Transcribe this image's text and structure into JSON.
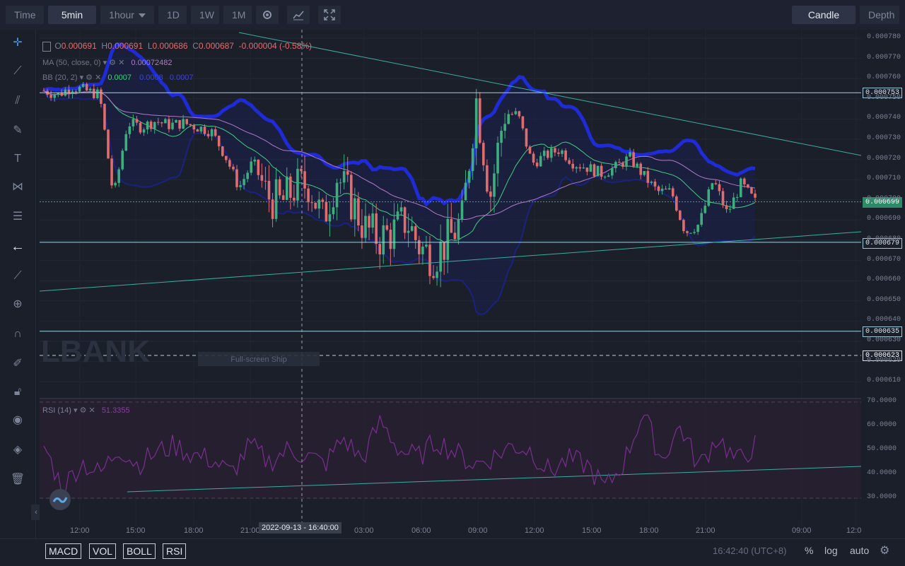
{
  "toolbar": {
    "time": "Time",
    "interval_active": "5min",
    "interval_2": "1hour",
    "d1": "1D",
    "w1": "1W",
    "m1": "1M",
    "candle_line": "Candle line",
    "depth": "Depth"
  },
  "legend": {
    "o_label": "O",
    "o_val": "0.000691",
    "h_label": "H",
    "h_val": "0.000691",
    "l_label": "L",
    "l_val": "0.000686",
    "c_label": "C",
    "c_val": "0.000687",
    "change": "-0.000004 (-0.58%)",
    "ma": "MA (50, close, 0)",
    "ma_val": "0.00072482",
    "bb": "BB (20, 2)",
    "bb_val1": "0.0007",
    "bb_val2": "0.0008",
    "bb_val3": "0.0007",
    "rsi": "RSI (14)",
    "rsi_val": "51.3355"
  },
  "watermark": "LBANK",
  "fullscreen_tip": "Full-screen Ship",
  "y_ticks": [
    "0.000780",
    "0.000770",
    "0.000760",
    "0.000750",
    "0.000740",
    "0.000730",
    "0.000720",
    "0.000710",
    "0.000700",
    "0.000690",
    "0.000680",
    "0.000670",
    "0.000660",
    "0.000650",
    "0.000640",
    "0.000630",
    "0.000620",
    "0.000610"
  ],
  "rsi_ticks": [
    "70.0000",
    "60.0000",
    "50.0000",
    "40.0000",
    "30.0000"
  ],
  "price_tags": {
    "r1": "0.000753",
    "current": "0.000699",
    "s1": "0.000679",
    "s2": "0.000635",
    "s3": "0.000623"
  },
  "x_labels": [
    "12:00",
    "15:00",
    "18:00",
    "21:00",
    "03:00",
    "06:00",
    "09:00",
    "12:00",
    "15:00",
    "18:00",
    "21:00",
    "09:00",
    "12:0"
  ],
  "crosshair_time": "2022-09-13 - 16:40:00",
  "bottom": {
    "macd": "MACD",
    "vol": "VOL",
    "boll": "BOLL",
    "rsi": "RSI",
    "clock": "16:42:40 (UTC+8)",
    "pct": "%",
    "log": "log",
    "auto": "auto"
  },
  "colors": {
    "up": "#3fae7f",
    "down": "#e06c6c",
    "boll_band": "#1f2bd6",
    "trend": "#3aaea0",
    "level": "#9ed4e6",
    "rsi_line": "#7a2f8f"
  },
  "chart_data": {
    "type": "candlestick",
    "price_series_approx": [
      0.000754,
      0.000752,
      0.000756,
      0.000754,
      0.000752,
      0.000701,
      0.000738,
      0.000736,
      0.000739,
      0.000737,
      0.000738,
      0.000736,
      0.000734,
      0.000722,
      0.000706,
      0.000719,
      0.000702,
      0.000698,
      0.000706,
      0.000708,
      0.00069,
      0.000712,
      0.0007,
      0.000686,
      0.000681,
      0.000684,
      0.00069,
      0.000676,
      0.000672,
      0.00068,
      0.00069,
      0.00075,
      0.000702,
      0.000743,
      0.000742,
      0.000718,
      0.000722,
      0.000725,
      0.000718,
      0.000716,
      0.000713,
      0.000716,
      0.000721,
      0.000712,
      0.000704,
      0.000704,
      0.000684,
      0.000688,
      0.00071,
      0.000693,
      0.000708,
      0.000699
    ],
    "support_resistance": [
      0.000753,
      0.000679,
      0.000635,
      0.000623
    ],
    "rsi_series_approx": [
      52,
      34,
      45,
      40,
      51,
      44,
      49,
      52,
      48,
      46,
      40,
      52,
      45,
      50,
      48,
      44,
      55,
      46,
      62,
      50,
      47,
      54,
      49,
      44,
      47,
      52,
      50,
      41,
      46,
      44,
      34,
      45,
      66,
      46,
      60,
      43,
      56,
      45,
      52
    ]
  }
}
